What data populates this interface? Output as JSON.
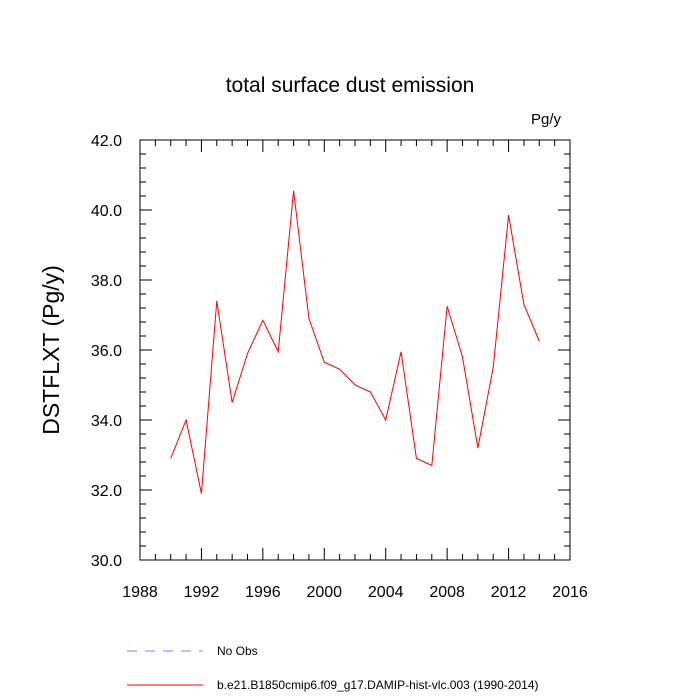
{
  "chart_data": {
    "type": "line",
    "title": "total surface dust emission",
    "unit_label": "Pg/y",
    "ylabel": "DSTFLXT  (Pg/y)",
    "xlabel": "",
    "xlim": [
      1988,
      2016
    ],
    "ylim": [
      30,
      42
    ],
    "x_ticks": [
      1988,
      1992,
      1996,
      2000,
      2004,
      2008,
      2012,
      2016
    ],
    "y_ticks": [
      30,
      32,
      34,
      36,
      38,
      40,
      42
    ],
    "x_tick_labels": [
      "1988",
      "1992",
      "1996",
      "2000",
      "2004",
      "2008",
      "2012",
      "2016"
    ],
    "y_tick_labels": [
      "30.0",
      "32.0",
      "34.0",
      "36.0",
      "38.0",
      "40.0",
      "42.0"
    ],
    "grid": false,
    "legend_position": "bottom",
    "series": [
      {
        "name": "b.e21.B1850cmip6.f09_g17.DAMIP-hist-vlc.003 (1990-2014)",
        "color": "#ff0000",
        "dash": "solid",
        "x": [
          1990,
          1991,
          1992,
          1993,
          1994,
          1995,
          1996,
          1997,
          1998,
          1999,
          2000,
          2001,
          2002,
          2003,
          2004,
          2005,
          2006,
          2007,
          2008,
          2009,
          2010,
          2011,
          2012,
          2013,
          2014
        ],
        "y": [
          32.9,
          34.0,
          31.9,
          37.4,
          34.5,
          35.9,
          36.85,
          35.95,
          40.55,
          36.9,
          35.65,
          35.45,
          35.0,
          34.8,
          34.0,
          35.95,
          32.9,
          32.7,
          37.25,
          35.8,
          33.2,
          35.5,
          39.85,
          37.3,
          36.25
        ]
      }
    ],
    "legend": [
      {
        "label": "No Obs",
        "color": "#8080ff",
        "dash": "dashed"
      },
      {
        "label": "b.e21.B1850cmip6.f09_g17.DAMIP-hist-vlc.003 (1990-2014)",
        "color": "#ff0000",
        "dash": "solid"
      }
    ]
  }
}
